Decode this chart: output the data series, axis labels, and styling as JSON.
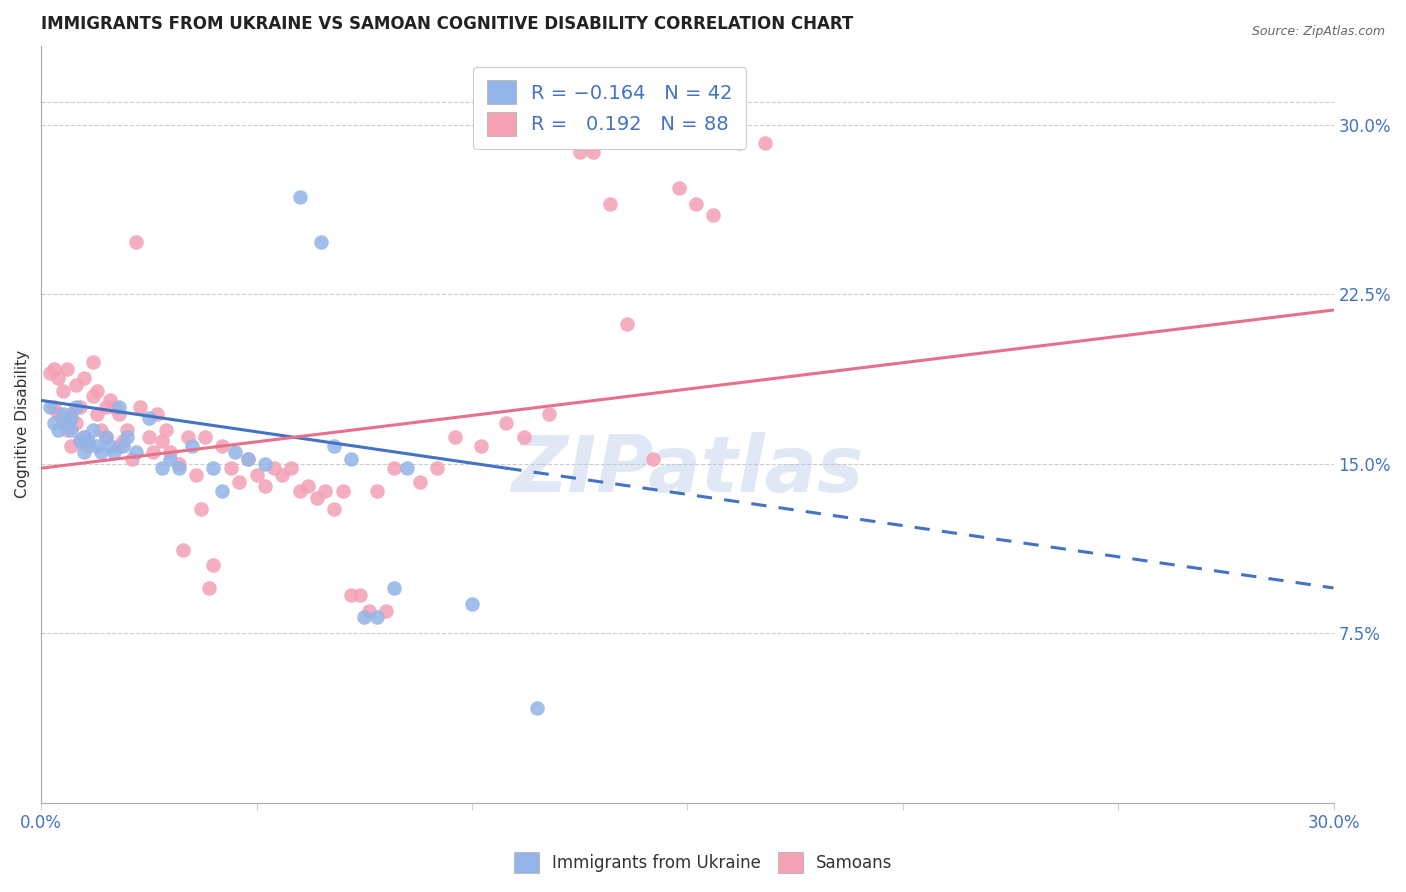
{
  "title": "IMMIGRANTS FROM UKRAINE VS SAMOAN COGNITIVE DISABILITY CORRELATION CHART",
  "source": "Source: ZipAtlas.com",
  "ylabel": "Cognitive Disability",
  "right_yticks": [
    "7.5%",
    "15.0%",
    "22.5%",
    "30.0%"
  ],
  "right_ytick_vals": [
    0.075,
    0.15,
    0.225,
    0.3
  ],
  "xlim": [
    0.0,
    0.3
  ],
  "ylim": [
    0.0,
    0.335
  ],
  "ukraine_color": "#92b4e8",
  "samoan_color": "#f4a0b5",
  "ukraine_line_color": "#4472c4",
  "samoan_line_color": "#e8708a",
  "watermark": "ZIPatlas",
  "ukraine_scatter": [
    [
      0.002,
      0.175
    ],
    [
      0.003,
      0.168
    ],
    [
      0.004,
      0.165
    ],
    [
      0.005,
      0.172
    ],
    [
      0.006,
      0.168
    ],
    [
      0.007,
      0.165
    ],
    [
      0.007,
      0.17
    ],
    [
      0.008,
      0.175
    ],
    [
      0.009,
      0.16
    ],
    [
      0.01,
      0.155
    ],
    [
      0.01,
      0.162
    ],
    [
      0.011,
      0.16
    ],
    [
      0.012,
      0.165
    ],
    [
      0.013,
      0.158
    ],
    [
      0.014,
      0.155
    ],
    [
      0.015,
      0.162
    ],
    [
      0.016,
      0.158
    ],
    [
      0.017,
      0.155
    ],
    [
      0.018,
      0.175
    ],
    [
      0.019,
      0.158
    ],
    [
      0.02,
      0.162
    ],
    [
      0.022,
      0.155
    ],
    [
      0.025,
      0.17
    ],
    [
      0.028,
      0.148
    ],
    [
      0.03,
      0.152
    ],
    [
      0.032,
      0.148
    ],
    [
      0.035,
      0.158
    ],
    [
      0.04,
      0.148
    ],
    [
      0.042,
      0.138
    ],
    [
      0.045,
      0.155
    ],
    [
      0.048,
      0.152
    ],
    [
      0.052,
      0.15
    ],
    [
      0.06,
      0.268
    ],
    [
      0.065,
      0.248
    ],
    [
      0.068,
      0.158
    ],
    [
      0.072,
      0.152
    ],
    [
      0.075,
      0.082
    ],
    [
      0.078,
      0.082
    ],
    [
      0.082,
      0.095
    ],
    [
      0.085,
      0.148
    ],
    [
      0.1,
      0.088
    ],
    [
      0.115,
      0.042
    ]
  ],
  "samoan_scatter": [
    [
      0.002,
      0.19
    ],
    [
      0.003,
      0.192
    ],
    [
      0.003,
      0.175
    ],
    [
      0.004,
      0.188
    ],
    [
      0.004,
      0.172
    ],
    [
      0.005,
      0.182
    ],
    [
      0.005,
      0.168
    ],
    [
      0.006,
      0.165
    ],
    [
      0.006,
      0.192
    ],
    [
      0.007,
      0.158
    ],
    [
      0.007,
      0.172
    ],
    [
      0.008,
      0.168
    ],
    [
      0.008,
      0.185
    ],
    [
      0.009,
      0.16
    ],
    [
      0.009,
      0.175
    ],
    [
      0.01,
      0.162
    ],
    [
      0.01,
      0.188
    ],
    [
      0.011,
      0.158
    ],
    [
      0.012,
      0.18
    ],
    [
      0.012,
      0.195
    ],
    [
      0.013,
      0.172
    ],
    [
      0.013,
      0.182
    ],
    [
      0.014,
      0.165
    ],
    [
      0.015,
      0.175
    ],
    [
      0.015,
      0.162
    ],
    [
      0.016,
      0.178
    ],
    [
      0.017,
      0.175
    ],
    [
      0.018,
      0.158
    ],
    [
      0.018,
      0.172
    ],
    [
      0.019,
      0.16
    ],
    [
      0.02,
      0.165
    ],
    [
      0.021,
      0.152
    ],
    [
      0.022,
      0.248
    ],
    [
      0.023,
      0.175
    ],
    [
      0.025,
      0.162
    ],
    [
      0.026,
      0.155
    ],
    [
      0.027,
      0.172
    ],
    [
      0.028,
      0.16
    ],
    [
      0.029,
      0.165
    ],
    [
      0.03,
      0.155
    ],
    [
      0.032,
      0.15
    ],
    [
      0.033,
      0.112
    ],
    [
      0.034,
      0.162
    ],
    [
      0.036,
      0.145
    ],
    [
      0.037,
      0.13
    ],
    [
      0.038,
      0.162
    ],
    [
      0.039,
      0.095
    ],
    [
      0.04,
      0.105
    ],
    [
      0.042,
      0.158
    ],
    [
      0.044,
      0.148
    ],
    [
      0.046,
      0.142
    ],
    [
      0.048,
      0.152
    ],
    [
      0.05,
      0.145
    ],
    [
      0.052,
      0.14
    ],
    [
      0.054,
      0.148
    ],
    [
      0.056,
      0.145
    ],
    [
      0.058,
      0.148
    ],
    [
      0.06,
      0.138
    ],
    [
      0.062,
      0.14
    ],
    [
      0.064,
      0.135
    ],
    [
      0.066,
      0.138
    ],
    [
      0.068,
      0.13
    ],
    [
      0.07,
      0.138
    ],
    [
      0.072,
      0.092
    ],
    [
      0.074,
      0.092
    ],
    [
      0.076,
      0.085
    ],
    [
      0.078,
      0.138
    ],
    [
      0.08,
      0.085
    ],
    [
      0.082,
      0.148
    ],
    [
      0.088,
      0.142
    ],
    [
      0.092,
      0.148
    ],
    [
      0.096,
      0.162
    ],
    [
      0.102,
      0.158
    ],
    [
      0.108,
      0.168
    ],
    [
      0.112,
      0.162
    ],
    [
      0.118,
      0.172
    ],
    [
      0.125,
      0.288
    ],
    [
      0.128,
      0.288
    ],
    [
      0.132,
      0.265
    ],
    [
      0.136,
      0.212
    ],
    [
      0.142,
      0.152
    ],
    [
      0.148,
      0.272
    ],
    [
      0.152,
      0.265
    ],
    [
      0.156,
      0.26
    ],
    [
      0.162,
      0.292
    ],
    [
      0.168,
      0.292
    ]
  ],
  "ukraine_trend": {
    "x_start": 0.0,
    "y_start": 0.178,
    "x_end": 0.108,
    "y_end": 0.148,
    "x_dash_start": 0.108,
    "y_dash_start": 0.148,
    "x_dash_end": 0.3,
    "y_dash_end": 0.095
  },
  "samoan_trend": {
    "x_start": 0.0,
    "y_start": 0.148,
    "x_end": 0.3,
    "y_end": 0.218
  },
  "xtick_vals": [
    0.0,
    0.05,
    0.1,
    0.15,
    0.2,
    0.25,
    0.3
  ],
  "xtick_edge_labels": {
    "0.0": "0.0%",
    "0.3": "30.0%"
  }
}
